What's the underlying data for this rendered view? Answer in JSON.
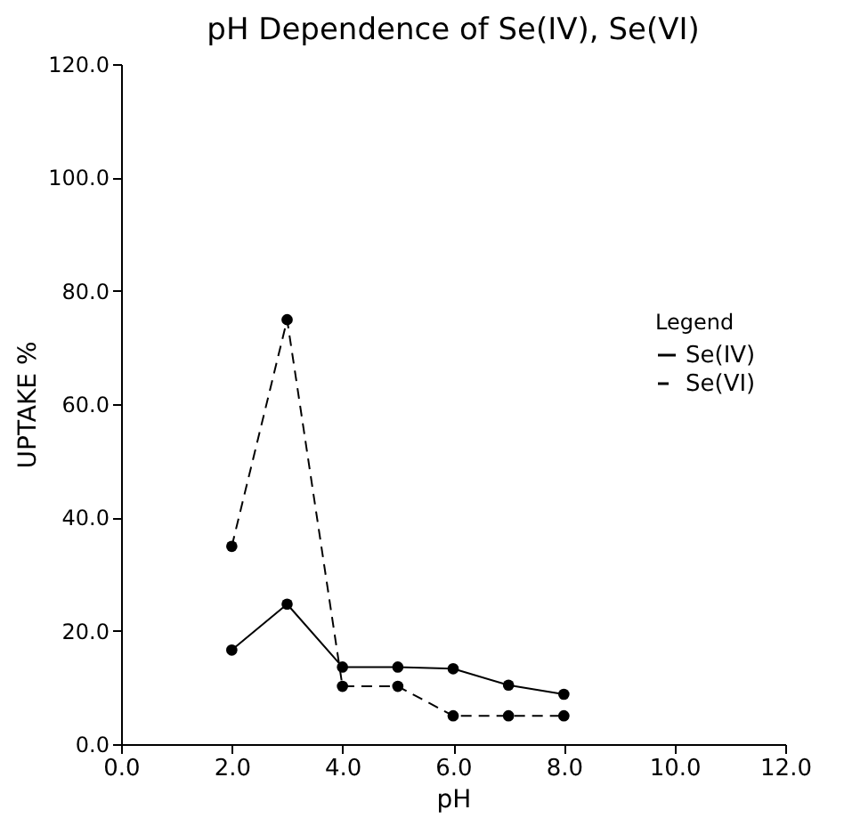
{
  "chart_data": {
    "type": "line",
    "title": "pH Dependence of Se(IV), Se(VI)",
    "xlabel": "pH",
    "ylabel": "UPTAKE %",
    "legend_title": "Legend",
    "x": [
      2,
      3,
      4,
      5,
      6,
      7,
      8
    ],
    "series": [
      {
        "name": "Se(IV)",
        "color": "#000000",
        "line_style": "solid",
        "values": [
          16.6,
          24.7,
          13.6,
          13.6,
          13.3,
          10.4,
          8.8
        ]
      },
      {
        "name": "Se(VI)",
        "color": "#000000",
        "line_style": "dashed",
        "values": [
          34.9,
          74.9,
          10.2,
          10.2,
          5.0,
          5.0,
          5.0
        ]
      }
    ],
    "xlim": [
      0,
      12
    ],
    "xticks": [
      {
        "value": 0,
        "label": "0.0"
      },
      {
        "value": 2,
        "label": "2.0"
      },
      {
        "value": 4,
        "label": "4.0"
      },
      {
        "value": 6,
        "label": "6.0"
      },
      {
        "value": 8,
        "label": "8.0"
      },
      {
        "value": 10,
        "label": "10.0"
      },
      {
        "value": 12,
        "label": "12.0"
      }
    ],
    "ylim": [
      0,
      120
    ],
    "yticks": [
      {
        "value": 0,
        "label": "0.0"
      },
      {
        "value": 20,
        "label": "20.0"
      },
      {
        "value": 40,
        "label": "40.0"
      },
      {
        "value": 60,
        "label": "60.0"
      },
      {
        "value": 80,
        "label": "80.0"
      },
      {
        "value": 100,
        "label": "100.0"
      },
      {
        "value": 120,
        "label": "120.0"
      }
    ],
    "marker": "circle",
    "legend": "right",
    "grid": false
  }
}
